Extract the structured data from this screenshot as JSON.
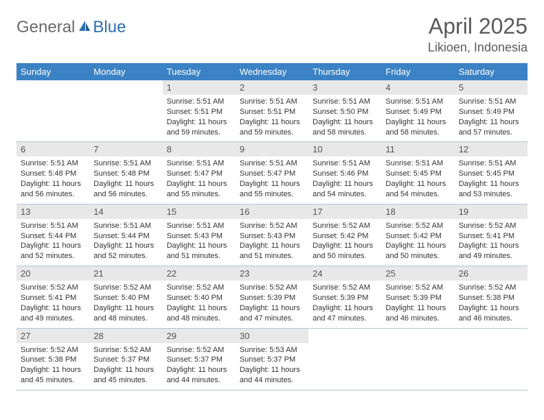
{
  "brand": {
    "general": "General",
    "blue": "Blue"
  },
  "title": "April 2025",
  "location": "Likioen, Indonesia",
  "colors": {
    "header_bg": "#3b82c4",
    "header_text": "#ffffff",
    "daynum_bg": "#e8e8e8",
    "daynum_text": "#555555",
    "body_text": "#333333",
    "grid_border": "#b8c4d0",
    "brand_gray": "#6b6b6b",
    "brand_blue": "#2b6fb0"
  },
  "typography": {
    "title_fontsize": 32,
    "location_fontsize": 18,
    "header_fontsize": 13,
    "daynum_fontsize": 13,
    "info_fontsize": 11
  },
  "weekdays": [
    "Sunday",
    "Monday",
    "Tuesday",
    "Wednesday",
    "Thursday",
    "Friday",
    "Saturday"
  ],
  "weeks": [
    [
      null,
      null,
      {
        "n": "1",
        "sr": "Sunrise: 5:51 AM",
        "ss": "Sunset: 5:51 PM",
        "dl": "Daylight: 11 hours and 59 minutes."
      },
      {
        "n": "2",
        "sr": "Sunrise: 5:51 AM",
        "ss": "Sunset: 5:51 PM",
        "dl": "Daylight: 11 hours and 59 minutes."
      },
      {
        "n": "3",
        "sr": "Sunrise: 5:51 AM",
        "ss": "Sunset: 5:50 PM",
        "dl": "Daylight: 11 hours and 58 minutes."
      },
      {
        "n": "4",
        "sr": "Sunrise: 5:51 AM",
        "ss": "Sunset: 5:49 PM",
        "dl": "Daylight: 11 hours and 58 minutes."
      },
      {
        "n": "5",
        "sr": "Sunrise: 5:51 AM",
        "ss": "Sunset: 5:49 PM",
        "dl": "Daylight: 11 hours and 57 minutes."
      }
    ],
    [
      {
        "n": "6",
        "sr": "Sunrise: 5:51 AM",
        "ss": "Sunset: 5:48 PM",
        "dl": "Daylight: 11 hours and 56 minutes."
      },
      {
        "n": "7",
        "sr": "Sunrise: 5:51 AM",
        "ss": "Sunset: 5:48 PM",
        "dl": "Daylight: 11 hours and 56 minutes."
      },
      {
        "n": "8",
        "sr": "Sunrise: 5:51 AM",
        "ss": "Sunset: 5:47 PM",
        "dl": "Daylight: 11 hours and 55 minutes."
      },
      {
        "n": "9",
        "sr": "Sunrise: 5:51 AM",
        "ss": "Sunset: 5:47 PM",
        "dl": "Daylight: 11 hours and 55 minutes."
      },
      {
        "n": "10",
        "sr": "Sunrise: 5:51 AM",
        "ss": "Sunset: 5:46 PM",
        "dl": "Daylight: 11 hours and 54 minutes."
      },
      {
        "n": "11",
        "sr": "Sunrise: 5:51 AM",
        "ss": "Sunset: 5:45 PM",
        "dl": "Daylight: 11 hours and 54 minutes."
      },
      {
        "n": "12",
        "sr": "Sunrise: 5:51 AM",
        "ss": "Sunset: 5:45 PM",
        "dl": "Daylight: 11 hours and 53 minutes."
      }
    ],
    [
      {
        "n": "13",
        "sr": "Sunrise: 5:51 AM",
        "ss": "Sunset: 5:44 PM",
        "dl": "Daylight: 11 hours and 52 minutes."
      },
      {
        "n": "14",
        "sr": "Sunrise: 5:51 AM",
        "ss": "Sunset: 5:44 PM",
        "dl": "Daylight: 11 hours and 52 minutes."
      },
      {
        "n": "15",
        "sr": "Sunrise: 5:51 AM",
        "ss": "Sunset: 5:43 PM",
        "dl": "Daylight: 11 hours and 51 minutes."
      },
      {
        "n": "16",
        "sr": "Sunrise: 5:52 AM",
        "ss": "Sunset: 5:43 PM",
        "dl": "Daylight: 11 hours and 51 minutes."
      },
      {
        "n": "17",
        "sr": "Sunrise: 5:52 AM",
        "ss": "Sunset: 5:42 PM",
        "dl": "Daylight: 11 hours and 50 minutes."
      },
      {
        "n": "18",
        "sr": "Sunrise: 5:52 AM",
        "ss": "Sunset: 5:42 PM",
        "dl": "Daylight: 11 hours and 50 minutes."
      },
      {
        "n": "19",
        "sr": "Sunrise: 5:52 AM",
        "ss": "Sunset: 5:41 PM",
        "dl": "Daylight: 11 hours and 49 minutes."
      }
    ],
    [
      {
        "n": "20",
        "sr": "Sunrise: 5:52 AM",
        "ss": "Sunset: 5:41 PM",
        "dl": "Daylight: 11 hours and 49 minutes."
      },
      {
        "n": "21",
        "sr": "Sunrise: 5:52 AM",
        "ss": "Sunset: 5:40 PM",
        "dl": "Daylight: 11 hours and 48 minutes."
      },
      {
        "n": "22",
        "sr": "Sunrise: 5:52 AM",
        "ss": "Sunset: 5:40 PM",
        "dl": "Daylight: 11 hours and 48 minutes."
      },
      {
        "n": "23",
        "sr": "Sunrise: 5:52 AM",
        "ss": "Sunset: 5:39 PM",
        "dl": "Daylight: 11 hours and 47 minutes."
      },
      {
        "n": "24",
        "sr": "Sunrise: 5:52 AM",
        "ss": "Sunset: 5:39 PM",
        "dl": "Daylight: 11 hours and 47 minutes."
      },
      {
        "n": "25",
        "sr": "Sunrise: 5:52 AM",
        "ss": "Sunset: 5:39 PM",
        "dl": "Daylight: 11 hours and 46 minutes."
      },
      {
        "n": "26",
        "sr": "Sunrise: 5:52 AM",
        "ss": "Sunset: 5:38 PM",
        "dl": "Daylight: 11 hours and 46 minutes."
      }
    ],
    [
      {
        "n": "27",
        "sr": "Sunrise: 5:52 AM",
        "ss": "Sunset: 5:38 PM",
        "dl": "Daylight: 11 hours and 45 minutes."
      },
      {
        "n": "28",
        "sr": "Sunrise: 5:52 AM",
        "ss": "Sunset: 5:37 PM",
        "dl": "Daylight: 11 hours and 45 minutes."
      },
      {
        "n": "29",
        "sr": "Sunrise: 5:52 AM",
        "ss": "Sunset: 5:37 PM",
        "dl": "Daylight: 11 hours and 44 minutes."
      },
      {
        "n": "30",
        "sr": "Sunrise: 5:53 AM",
        "ss": "Sunset: 5:37 PM",
        "dl": "Daylight: 11 hours and 44 minutes."
      },
      null,
      null,
      null
    ]
  ]
}
